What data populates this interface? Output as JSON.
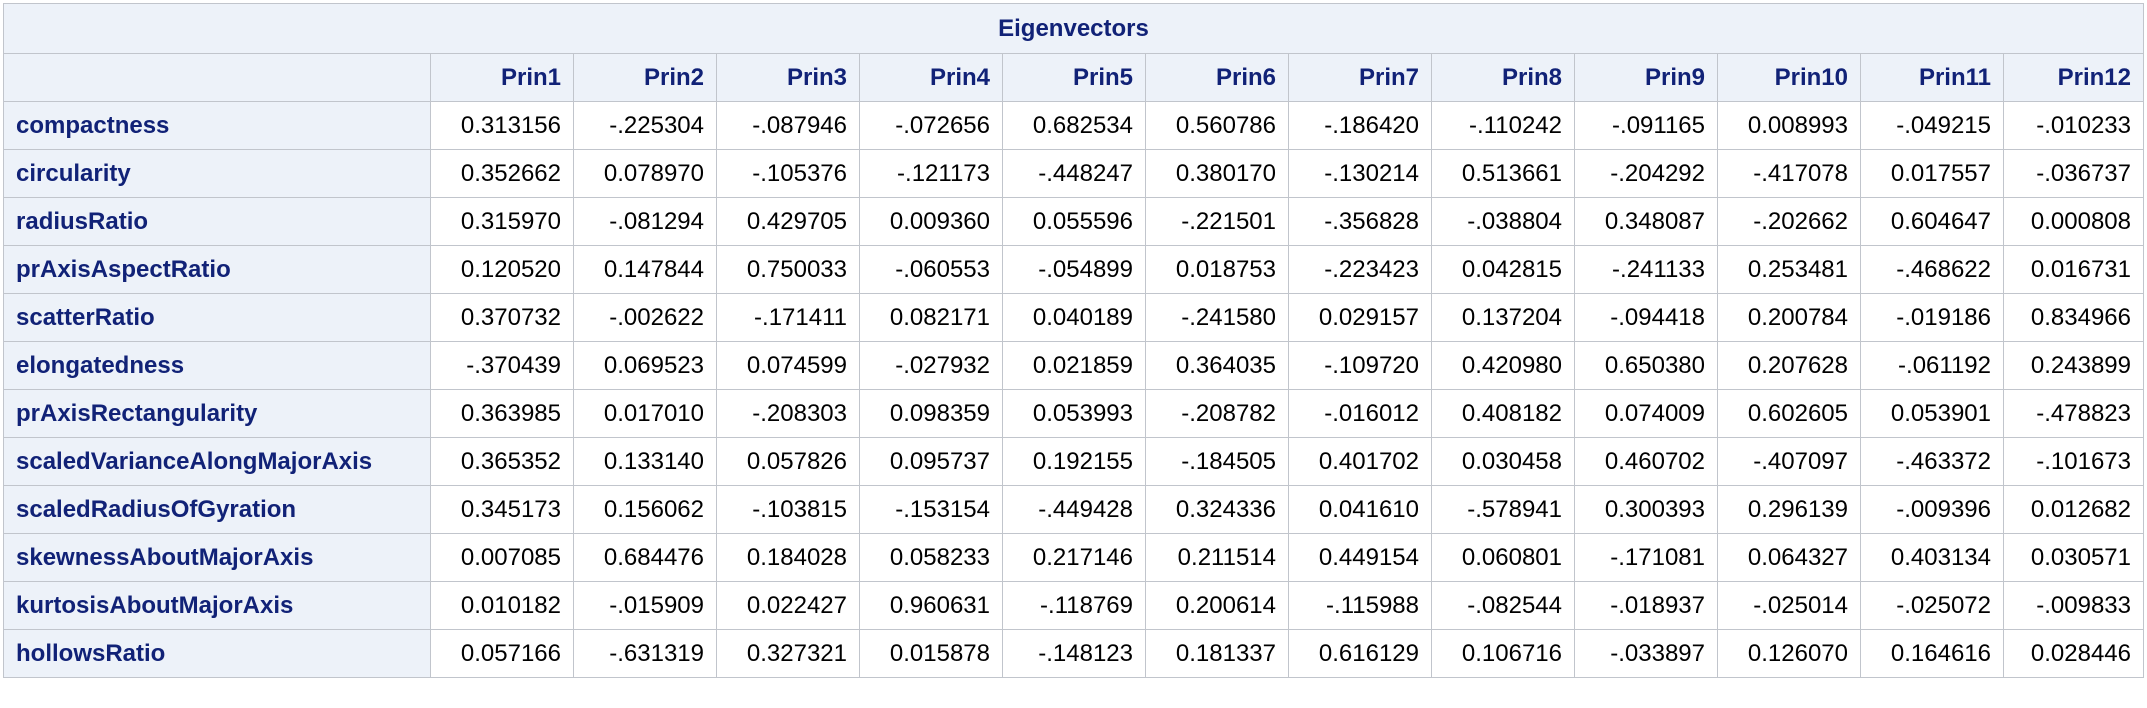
{
  "table": {
    "title": "Eigenvectors",
    "columns": [
      "Prin1",
      "Prin2",
      "Prin3",
      "Prin4",
      "Prin5",
      "Prin6",
      "Prin7",
      "Prin8",
      "Prin9",
      "Prin10",
      "Prin11",
      "Prin12"
    ],
    "rows": [
      {
        "label": "compactness",
        "values": [
          "0.313156",
          "-.225304",
          "-.087946",
          "-.072656",
          "0.682534",
          "0.560786",
          "-.186420",
          "-.110242",
          "-.091165",
          "0.008993",
          "-.049215",
          "-.010233"
        ]
      },
      {
        "label": "circularity",
        "values": [
          "0.352662",
          "0.078970",
          "-.105376",
          "-.121173",
          "-.448247",
          "0.380170",
          "-.130214",
          "0.513661",
          "-.204292",
          "-.417078",
          "0.017557",
          "-.036737"
        ]
      },
      {
        "label": "radiusRatio",
        "values": [
          "0.315970",
          "-.081294",
          "0.429705",
          "0.009360",
          "0.055596",
          "-.221501",
          "-.356828",
          "-.038804",
          "0.348087",
          "-.202662",
          "0.604647",
          "0.000808"
        ]
      },
      {
        "label": "prAxisAspectRatio",
        "values": [
          "0.120520",
          "0.147844",
          "0.750033",
          "-.060553",
          "-.054899",
          "0.018753",
          "-.223423",
          "0.042815",
          "-.241133",
          "0.253481",
          "-.468622",
          "0.016731"
        ]
      },
      {
        "label": "scatterRatio",
        "values": [
          "0.370732",
          "-.002622",
          "-.171411",
          "0.082171",
          "0.040189",
          "-.241580",
          "0.029157",
          "0.137204",
          "-.094418",
          "0.200784",
          "-.019186",
          "0.834966"
        ]
      },
      {
        "label": "elongatedness",
        "values": [
          "-.370439",
          "0.069523",
          "0.074599",
          "-.027932",
          "0.021859",
          "0.364035",
          "-.109720",
          "0.420980",
          "0.650380",
          "0.207628",
          "-.061192",
          "0.243899"
        ]
      },
      {
        "label": "prAxisRectangularity",
        "values": [
          "0.363985",
          "0.017010",
          "-.208303",
          "0.098359",
          "0.053993",
          "-.208782",
          "-.016012",
          "0.408182",
          "0.074009",
          "0.602605",
          "0.053901",
          "-.478823"
        ]
      },
      {
        "label": "scaledVarianceAlongMajorAxis",
        "values": [
          "0.365352",
          "0.133140",
          "0.057826",
          "0.095737",
          "0.192155",
          "-.184505",
          "0.401702",
          "0.030458",
          "0.460702",
          "-.407097",
          "-.463372",
          "-.101673"
        ]
      },
      {
        "label": "scaledRadiusOfGyration",
        "values": [
          "0.345173",
          "0.156062",
          "-.103815",
          "-.153154",
          "-.449428",
          "0.324336",
          "0.041610",
          "-.578941",
          "0.300393",
          "0.296139",
          "-.009396",
          "0.012682"
        ]
      },
      {
        "label": "skewnessAboutMajorAxis",
        "values": [
          "0.007085",
          "0.684476",
          "0.184028",
          "0.058233",
          "0.217146",
          "0.211514",
          "0.449154",
          "0.060801",
          "-.171081",
          "0.064327",
          "0.403134",
          "0.030571"
        ]
      },
      {
        "label": "kurtosisAboutMajorAxis",
        "values": [
          "0.010182",
          "-.015909",
          "0.022427",
          "0.960631",
          "-.118769",
          "0.200614",
          "-.115988",
          "-.082544",
          "-.018937",
          "-.025014",
          "-.025072",
          "-.009833"
        ]
      },
      {
        "label": "hollowsRatio",
        "values": [
          "0.057166",
          "-.631319",
          "0.327321",
          "0.015878",
          "-.148123",
          "0.181337",
          "0.616129",
          "0.106716",
          "-.033897",
          "0.126070",
          "0.164616",
          "0.028446"
        ]
      }
    ]
  },
  "colors": {
    "header_bg": "#edf2f9",
    "header_text": "#112277",
    "border": "#c1c5cc",
    "cell_bg": "#ffffff"
  }
}
